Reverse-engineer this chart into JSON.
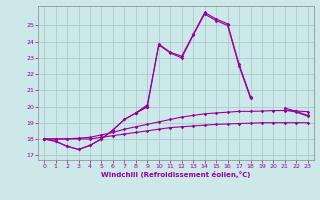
{
  "xlabel": "Windchill (Refroidissement éolien,°C)",
  "background_color": "#cce8e8",
  "grid_color": "#aacccc",
  "line_color": "#990099",
  "xlim": [
    -0.5,
    23.5
  ],
  "ylim": [
    16.7,
    26.2
  ],
  "yticks": [
    17,
    18,
    19,
    20,
    21,
    22,
    23,
    24,
    25
  ],
  "xticks": [
    0,
    1,
    2,
    3,
    4,
    5,
    6,
    7,
    8,
    9,
    10,
    11,
    12,
    13,
    14,
    15,
    16,
    17,
    18,
    19,
    20,
    21,
    22,
    23
  ],
  "curve1_x": [
    0,
    1,
    2,
    3,
    4,
    5,
    6,
    7,
    8,
    9,
    10,
    11,
    12,
    13,
    14,
    15,
    16,
    17,
    18,
    19,
    20,
    21,
    22,
    23
  ],
  "curve1_y": [
    18.0,
    18.0,
    18.0,
    18.0,
    18.0,
    18.1,
    18.2,
    18.3,
    18.4,
    18.5,
    18.6,
    18.7,
    18.75,
    18.8,
    18.85,
    18.9,
    18.92,
    18.95,
    18.97,
    19.0,
    19.0,
    19.0,
    19.0,
    19.0
  ],
  "curve2_x": [
    0,
    1,
    2,
    3,
    4,
    5,
    6,
    7,
    8,
    9,
    10,
    11,
    12,
    13,
    14,
    15,
    16,
    17,
    18,
    19,
    20,
    21,
    22,
    23
  ],
  "curve2_y": [
    18.0,
    18.0,
    18.0,
    18.05,
    18.1,
    18.25,
    18.4,
    18.6,
    18.75,
    18.9,
    19.05,
    19.2,
    19.35,
    19.45,
    19.55,
    19.6,
    19.65,
    19.7,
    19.7,
    19.72,
    19.75,
    19.75,
    19.72,
    19.68
  ],
  "curve3_x": [
    0,
    1,
    2,
    3,
    4,
    5,
    6,
    7,
    8,
    9,
    10,
    11,
    12,
    13,
    14,
    15,
    16,
    17,
    18,
    19,
    20,
    21,
    22,
    23
  ],
  "curve3_y": [
    18.0,
    17.85,
    17.55,
    17.35,
    17.6,
    18.0,
    18.55,
    19.2,
    19.6,
    20.0,
    null,
    null,
    null,
    null,
    null,
    null,
    null,
    null,
    null,
    null,
    null,
    19.8,
    19.65,
    19.4
  ],
  "curve3b_x": [
    8,
    9,
    10,
    11,
    12,
    13,
    14,
    15,
    16,
    17,
    18
  ],
  "curve3b_y": [
    19.6,
    20.0,
    23.8,
    23.3,
    23.0,
    24.4,
    25.7,
    25.3,
    25.0,
    22.5,
    20.5
  ],
  "curve4_x": [
    0,
    1,
    2,
    3,
    4,
    5,
    6,
    7,
    8,
    9,
    10,
    11,
    12,
    13,
    14,
    15,
    16,
    17,
    18,
    19,
    20,
    21,
    22,
    23
  ],
  "curve4_y": [
    18.0,
    17.85,
    17.55,
    17.35,
    17.6,
    18.0,
    18.55,
    19.2,
    19.6,
    20.0,
    null,
    null,
    null,
    null,
    null,
    null,
    null,
    null,
    null,
    null,
    null,
    19.9,
    19.7,
    19.45
  ],
  "curve4b_x": [
    8,
    9,
    10,
    11,
    12,
    13,
    14,
    15,
    16,
    17,
    18
  ],
  "curve4b_y": [
    19.6,
    20.1,
    23.85,
    23.35,
    23.1,
    24.45,
    25.8,
    25.4,
    25.1,
    22.6,
    20.6
  ]
}
